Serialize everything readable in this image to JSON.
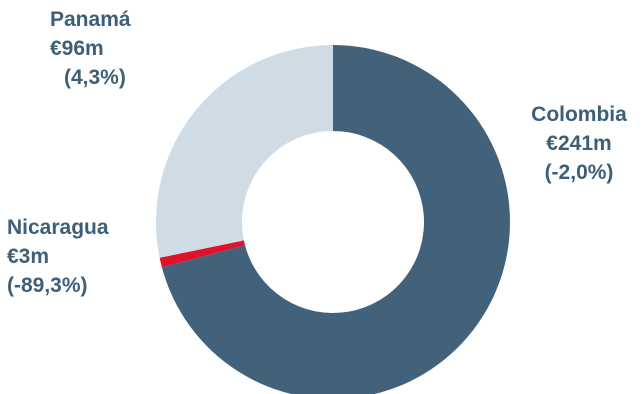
{
  "chart_data": {
    "type": "pie",
    "donut": true,
    "slices": [
      {
        "label": "Colombia",
        "value": 241,
        "value_label": "€241m",
        "change": "(-2,0%)",
        "color": "#42627b"
      },
      {
        "label": "Nicaragua",
        "value": 3,
        "value_label": "€3m",
        "change": "(-89,3%)",
        "color": "#e0112b"
      },
      {
        "label": "Panamá",
        "value": 96,
        "value_label": "€96m",
        "change": "(4,3%)",
        "color": "#cfdce6"
      }
    ],
    "label_color": "#3e5f78"
  }
}
